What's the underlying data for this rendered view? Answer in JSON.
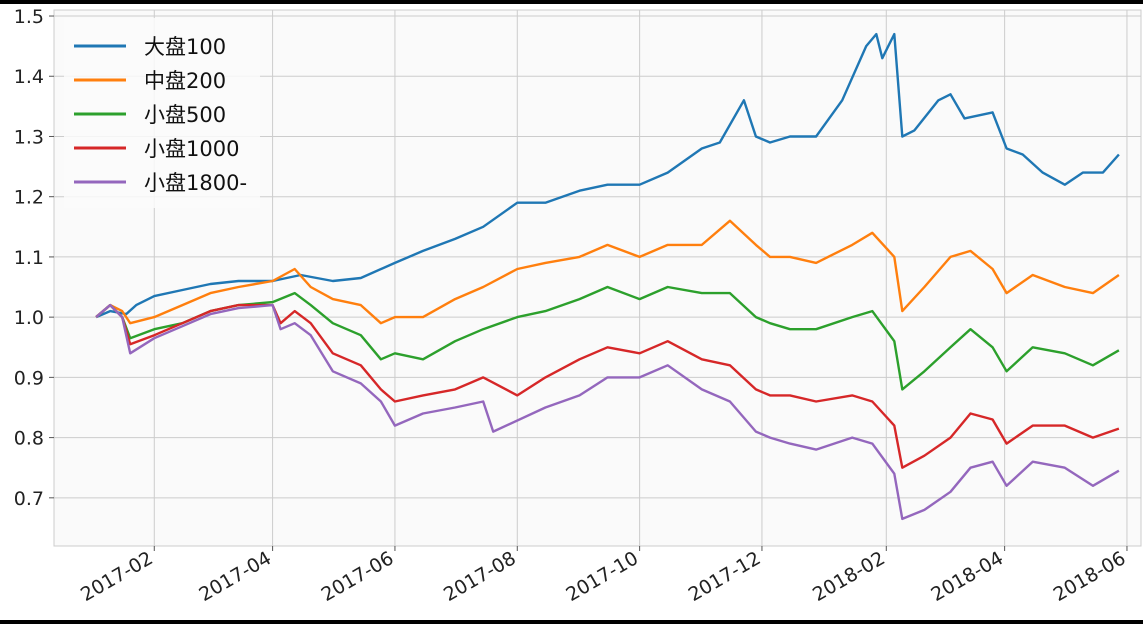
{
  "chart_data": {
    "type": "line",
    "title": "",
    "xlabel": "",
    "ylabel": "",
    "ylim": [
      0.62,
      1.51
    ],
    "xlim": [
      "2016-12-13",
      "2018-06-08"
    ],
    "x_tick_labels": [
      "2017-02",
      "2017-04",
      "2017-06",
      "2017-08",
      "2017-10",
      "2017-12",
      "2018-02",
      "2018-04",
      "2018-06"
    ],
    "x_ticks": [
      "2017-02-01",
      "2017-04-01",
      "2017-06-01",
      "2017-08-01",
      "2017-10-01",
      "2017-12-01",
      "2018-02-01",
      "2018-04-01",
      "2018-06-01"
    ],
    "y_ticks": [
      0.7,
      0.8,
      0.9,
      1.0,
      1.1,
      1.2,
      1.3,
      1.4,
      1.5
    ],
    "y_tick_labels": [
      "0.7",
      "0.8",
      "0.9",
      "1.0",
      "1.1",
      "1.2",
      "1.3",
      "1.4",
      "1.5"
    ],
    "grid": true,
    "legend_position": "top-left",
    "series": [
      {
        "name": "大盘100",
        "color": "#1f77b4",
        "points": [
          [
            "2017-01-03",
            1.0
          ],
          [
            "2017-01-10",
            1.01
          ],
          [
            "2017-01-18",
            1.005
          ],
          [
            "2017-01-23",
            1.02
          ],
          [
            "2017-02-01",
            1.035
          ],
          [
            "2017-02-15",
            1.045
          ],
          [
            "2017-03-01",
            1.055
          ],
          [
            "2017-03-15",
            1.06
          ],
          [
            "2017-04-01",
            1.06
          ],
          [
            "2017-04-15",
            1.07
          ],
          [
            "2017-05-01",
            1.06
          ],
          [
            "2017-05-15",
            1.065
          ],
          [
            "2017-06-01",
            1.09
          ],
          [
            "2017-06-15",
            1.11
          ],
          [
            "2017-07-01",
            1.13
          ],
          [
            "2017-07-15",
            1.15
          ],
          [
            "2017-08-01",
            1.19
          ],
          [
            "2017-08-15",
            1.19
          ],
          [
            "2017-09-01",
            1.21
          ],
          [
            "2017-09-15",
            1.22
          ],
          [
            "2017-10-01",
            1.22
          ],
          [
            "2017-10-15",
            1.24
          ],
          [
            "2017-11-01",
            1.28
          ],
          [
            "2017-11-10",
            1.29
          ],
          [
            "2017-11-22",
            1.36
          ],
          [
            "2017-11-28",
            1.3
          ],
          [
            "2017-12-05",
            1.29
          ],
          [
            "2017-12-15",
            1.3
          ],
          [
            "2017-12-28",
            1.3
          ],
          [
            "2018-01-10",
            1.36
          ],
          [
            "2018-01-22",
            1.45
          ],
          [
            "2018-01-27",
            1.47
          ],
          [
            "2018-01-30",
            1.43
          ],
          [
            "2018-02-05",
            1.47
          ],
          [
            "2018-02-09",
            1.3
          ],
          [
            "2018-02-15",
            1.31
          ],
          [
            "2018-02-27",
            1.36
          ],
          [
            "2018-03-05",
            1.37
          ],
          [
            "2018-03-12",
            1.33
          ],
          [
            "2018-03-26",
            1.34
          ],
          [
            "2018-04-02",
            1.28
          ],
          [
            "2018-04-10",
            1.27
          ],
          [
            "2018-04-20",
            1.24
          ],
          [
            "2018-05-01",
            1.22
          ],
          [
            "2018-05-10",
            1.24
          ],
          [
            "2018-05-20",
            1.24
          ],
          [
            "2018-05-28",
            1.27
          ]
        ]
      },
      {
        "name": "中盘200",
        "color": "#ff7f0e",
        "points": [
          [
            "2017-01-03",
            1.0
          ],
          [
            "2017-01-10",
            1.02
          ],
          [
            "2017-01-16",
            1.01
          ],
          [
            "2017-01-20",
            0.99
          ],
          [
            "2017-02-01",
            1.0
          ],
          [
            "2017-02-15",
            1.02
          ],
          [
            "2017-03-01",
            1.04
          ],
          [
            "2017-03-15",
            1.05
          ],
          [
            "2017-04-01",
            1.06
          ],
          [
            "2017-04-12",
            1.08
          ],
          [
            "2017-04-20",
            1.05
          ],
          [
            "2017-05-01",
            1.03
          ],
          [
            "2017-05-15",
            1.02
          ],
          [
            "2017-05-25",
            0.99
          ],
          [
            "2017-06-01",
            1.0
          ],
          [
            "2017-06-15",
            1.0
          ],
          [
            "2017-07-01",
            1.03
          ],
          [
            "2017-07-15",
            1.05
          ],
          [
            "2017-08-01",
            1.08
          ],
          [
            "2017-08-15",
            1.09
          ],
          [
            "2017-09-01",
            1.1
          ],
          [
            "2017-09-15",
            1.12
          ],
          [
            "2017-10-01",
            1.1
          ],
          [
            "2017-10-15",
            1.12
          ],
          [
            "2017-11-01",
            1.12
          ],
          [
            "2017-11-15",
            1.16
          ],
          [
            "2017-11-28",
            1.12
          ],
          [
            "2017-12-05",
            1.1
          ],
          [
            "2017-12-15",
            1.1
          ],
          [
            "2017-12-28",
            1.09
          ],
          [
            "2018-01-15",
            1.12
          ],
          [
            "2018-01-25",
            1.14
          ],
          [
            "2018-02-05",
            1.1
          ],
          [
            "2018-02-09",
            1.01
          ],
          [
            "2018-02-20",
            1.05
          ],
          [
            "2018-03-05",
            1.1
          ],
          [
            "2018-03-15",
            1.11
          ],
          [
            "2018-03-26",
            1.08
          ],
          [
            "2018-04-02",
            1.04
          ],
          [
            "2018-04-15",
            1.07
          ],
          [
            "2018-05-01",
            1.05
          ],
          [
            "2018-05-15",
            1.04
          ],
          [
            "2018-05-28",
            1.07
          ]
        ]
      },
      {
        "name": "小盘500",
        "color": "#2ca02c",
        "points": [
          [
            "2017-01-03",
            1.0
          ],
          [
            "2017-01-10",
            1.02
          ],
          [
            "2017-01-16",
            1.0
          ],
          [
            "2017-01-20",
            0.965
          ],
          [
            "2017-02-01",
            0.98
          ],
          [
            "2017-02-15",
            0.99
          ],
          [
            "2017-03-01",
            1.01
          ],
          [
            "2017-03-15",
            1.02
          ],
          [
            "2017-04-01",
            1.025
          ],
          [
            "2017-04-12",
            1.04
          ],
          [
            "2017-04-20",
            1.02
          ],
          [
            "2017-05-01",
            0.99
          ],
          [
            "2017-05-15",
            0.97
          ],
          [
            "2017-05-25",
            0.93
          ],
          [
            "2017-06-01",
            0.94
          ],
          [
            "2017-06-15",
            0.93
          ],
          [
            "2017-07-01",
            0.96
          ],
          [
            "2017-07-15",
            0.98
          ],
          [
            "2017-08-01",
            1.0
          ],
          [
            "2017-08-15",
            1.01
          ],
          [
            "2017-09-01",
            1.03
          ],
          [
            "2017-09-15",
            1.05
          ],
          [
            "2017-10-01",
            1.03
          ],
          [
            "2017-10-15",
            1.05
          ],
          [
            "2017-11-01",
            1.04
          ],
          [
            "2017-11-15",
            1.04
          ],
          [
            "2017-11-28",
            1.0
          ],
          [
            "2017-12-05",
            0.99
          ],
          [
            "2017-12-15",
            0.98
          ],
          [
            "2017-12-28",
            0.98
          ],
          [
            "2018-01-15",
            1.0
          ],
          [
            "2018-01-25",
            1.01
          ],
          [
            "2018-02-05",
            0.96
          ],
          [
            "2018-02-09",
            0.88
          ],
          [
            "2018-02-20",
            0.91
          ],
          [
            "2018-03-05",
            0.95
          ],
          [
            "2018-03-15",
            0.98
          ],
          [
            "2018-03-26",
            0.95
          ],
          [
            "2018-04-02",
            0.91
          ],
          [
            "2018-04-15",
            0.95
          ],
          [
            "2018-05-01",
            0.94
          ],
          [
            "2018-05-15",
            0.92
          ],
          [
            "2018-05-28",
            0.945
          ]
        ]
      },
      {
        "name": "小盘1000",
        "color": "#d62728",
        "points": [
          [
            "2017-01-03",
            1.0
          ],
          [
            "2017-01-10",
            1.02
          ],
          [
            "2017-01-16",
            1.0
          ],
          [
            "2017-01-20",
            0.955
          ],
          [
            "2017-02-01",
            0.97
          ],
          [
            "2017-02-15",
            0.99
          ],
          [
            "2017-03-01",
            1.01
          ],
          [
            "2017-03-15",
            1.02
          ],
          [
            "2017-04-01",
            1.02
          ],
          [
            "2017-04-05",
            0.99
          ],
          [
            "2017-04-12",
            1.01
          ],
          [
            "2017-04-20",
            0.99
          ],
          [
            "2017-05-01",
            0.94
          ],
          [
            "2017-05-15",
            0.92
          ],
          [
            "2017-05-25",
            0.88
          ],
          [
            "2017-06-01",
            0.86
          ],
          [
            "2017-06-15",
            0.87
          ],
          [
            "2017-07-01",
            0.88
          ],
          [
            "2017-07-15",
            0.9
          ],
          [
            "2017-08-01",
            0.87
          ],
          [
            "2017-08-15",
            0.9
          ],
          [
            "2017-09-01",
            0.93
          ],
          [
            "2017-09-15",
            0.95
          ],
          [
            "2017-10-01",
            0.94
          ],
          [
            "2017-10-15",
            0.96
          ],
          [
            "2017-11-01",
            0.93
          ],
          [
            "2017-11-15",
            0.92
          ],
          [
            "2017-11-28",
            0.88
          ],
          [
            "2017-12-05",
            0.87
          ],
          [
            "2017-12-15",
            0.87
          ],
          [
            "2017-12-28",
            0.86
          ],
          [
            "2018-01-15",
            0.87
          ],
          [
            "2018-01-25",
            0.86
          ],
          [
            "2018-02-05",
            0.82
          ],
          [
            "2018-02-09",
            0.75
          ],
          [
            "2018-02-20",
            0.77
          ],
          [
            "2018-03-05",
            0.8
          ],
          [
            "2018-03-15",
            0.84
          ],
          [
            "2018-03-26",
            0.83
          ],
          [
            "2018-04-02",
            0.79
          ],
          [
            "2018-04-15",
            0.82
          ],
          [
            "2018-05-01",
            0.82
          ],
          [
            "2018-05-15",
            0.8
          ],
          [
            "2018-05-28",
            0.815
          ]
        ]
      },
      {
        "name": "小盘1800-",
        "color": "#9467bd",
        "points": [
          [
            "2017-01-03",
            1.0
          ],
          [
            "2017-01-10",
            1.02
          ],
          [
            "2017-01-16",
            1.0
          ],
          [
            "2017-01-20",
            0.94
          ],
          [
            "2017-02-01",
            0.965
          ],
          [
            "2017-02-15",
            0.985
          ],
          [
            "2017-03-01",
            1.005
          ],
          [
            "2017-03-15",
            1.015
          ],
          [
            "2017-04-01",
            1.02
          ],
          [
            "2017-04-05",
            0.98
          ],
          [
            "2017-04-12",
            0.99
          ],
          [
            "2017-04-20",
            0.97
          ],
          [
            "2017-05-01",
            0.91
          ],
          [
            "2017-05-15",
            0.89
          ],
          [
            "2017-05-25",
            0.86
          ],
          [
            "2017-06-01",
            0.82
          ],
          [
            "2017-06-15",
            0.84
          ],
          [
            "2017-07-01",
            0.85
          ],
          [
            "2017-07-15",
            0.86
          ],
          [
            "2017-07-20",
            0.81
          ],
          [
            "2017-08-15",
            0.85
          ],
          [
            "2017-09-01",
            0.87
          ],
          [
            "2017-09-15",
            0.9
          ],
          [
            "2017-10-01",
            0.9
          ],
          [
            "2017-10-15",
            0.92
          ],
          [
            "2017-11-01",
            0.88
          ],
          [
            "2017-11-15",
            0.86
          ],
          [
            "2017-11-28",
            0.81
          ],
          [
            "2017-12-05",
            0.8
          ],
          [
            "2017-12-15",
            0.79
          ],
          [
            "2017-12-28",
            0.78
          ],
          [
            "2018-01-15",
            0.8
          ],
          [
            "2018-01-25",
            0.79
          ],
          [
            "2018-02-05",
            0.74
          ],
          [
            "2018-02-09",
            0.665
          ],
          [
            "2018-02-20",
            0.68
          ],
          [
            "2018-03-05",
            0.71
          ],
          [
            "2018-03-15",
            0.75
          ],
          [
            "2018-03-26",
            0.76
          ],
          [
            "2018-04-02",
            0.72
          ],
          [
            "2018-04-15",
            0.76
          ],
          [
            "2018-05-01",
            0.75
          ],
          [
            "2018-05-15",
            0.72
          ],
          [
            "2018-05-28",
            0.745
          ]
        ]
      }
    ]
  }
}
